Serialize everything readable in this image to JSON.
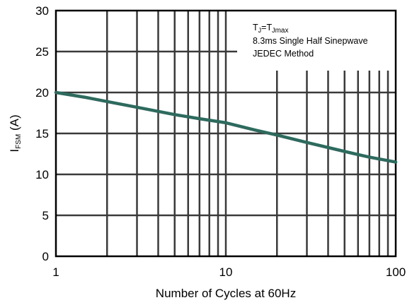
{
  "chart_data": {
    "type": "line",
    "x_scale": "log",
    "xlim": [
      1,
      100
    ],
    "ylim": [
      0,
      30
    ],
    "x_ticks": [
      1,
      10,
      100
    ],
    "x_tick_labels": [
      "1",
      "10",
      "100"
    ],
    "y_ticks": [
      0,
      5,
      10,
      15,
      20,
      25,
      30
    ],
    "y_tick_labels": [
      "0",
      "5",
      "10",
      "15",
      "20",
      "25",
      "30"
    ],
    "xlabel": "Number of Cycles at 60Hz",
    "ylabel": {
      "main": "I",
      "sub": "FSM",
      "unit": " (A)"
    },
    "grid": true,
    "annotation": {
      "line1": {
        "a": "T",
        "a_sub": "J",
        "b": "=T",
        "b_sub": "J",
        "c": "max"
      },
      "line2": "8.3ms Single Half  Sinepwave",
      "line3": "JEDEC Method"
    },
    "series": [
      {
        "color": "#2e6a5e",
        "x": [
          1,
          1.5,
          2,
          3,
          5,
          7,
          10,
          15,
          20,
          30,
          50,
          70,
          100
        ],
        "y": [
          20.0,
          19.4,
          18.9,
          18.2,
          17.3,
          16.8,
          16.3,
          15.4,
          14.8,
          13.9,
          12.8,
          12.1,
          11.5
        ]
      }
    ]
  }
}
